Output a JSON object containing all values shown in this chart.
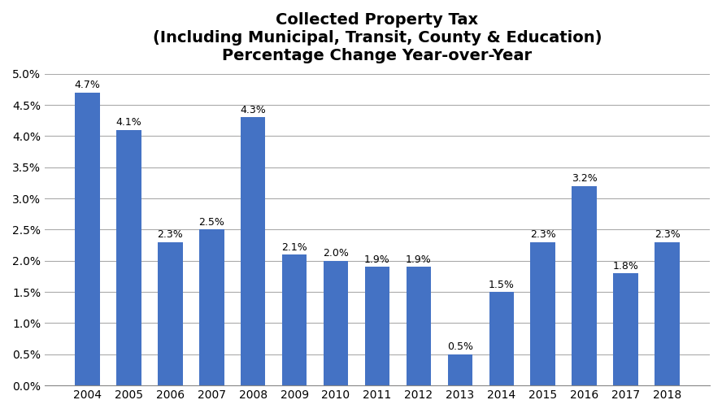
{
  "title_line1": "Collected Property Tax",
  "title_line2": "(Including Municipal, Transit, County & Education)",
  "title_line3": "Percentage Change Year-over-Year",
  "categories": [
    "2004",
    "2005",
    "2006",
    "2007",
    "2008",
    "2009",
    "2010",
    "2011",
    "2012",
    "2013",
    "2014",
    "2015",
    "2016",
    "2017",
    "2018"
  ],
  "values": [
    4.7,
    4.1,
    2.3,
    2.5,
    4.3,
    2.1,
    2.0,
    1.9,
    1.9,
    0.5,
    1.5,
    2.3,
    3.2,
    1.8,
    2.3
  ],
  "bar_color": "#4472C4",
  "ylim": [
    0.0,
    5.0
  ],
  "ytick_step": 0.5,
  "label_fontsize": 9,
  "title_fontsize": 14,
  "axis_tick_fontsize": 10,
  "background_color": "#FFFFFF",
  "grid_color": "#AAAAAA",
  "bar_width": 0.6
}
